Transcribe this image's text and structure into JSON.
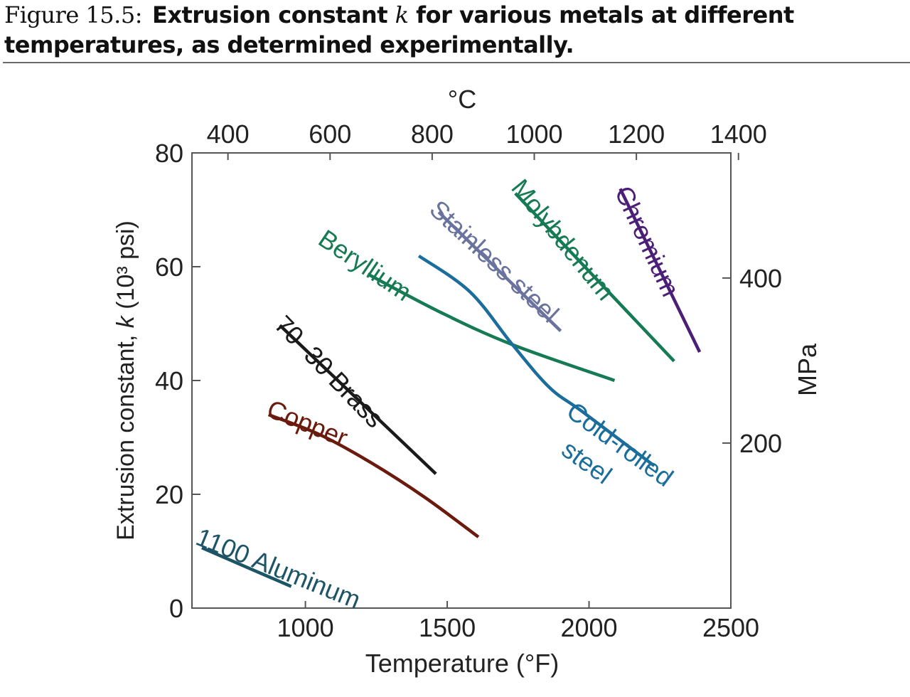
{
  "caption": {
    "number": "Figure 15.5:",
    "text_before_k": "Extrusion constant ",
    "k": "k",
    "text_after_k": " for various metals at different temperatures, as determined experimentally."
  },
  "chart_data": {
    "type": "line",
    "title": "",
    "xlabel": "Temperature (°F)",
    "ylabel_prefix": "Extrusion constant, ",
    "ylabel_k": "k",
    "ylabel_suffix": " (10³ psi)",
    "top_axis_label": "°C",
    "right_axis_label": "MPa",
    "xlim": [
      600,
      2500
    ],
    "ylim": [
      0,
      80
    ],
    "x_ticks": [
      1000,
      1500,
      2000,
      2500
    ],
    "y_ticks": [
      0,
      20,
      40,
      60,
      80
    ],
    "top_ticks_C": [
      400,
      600,
      800,
      1000,
      1200,
      1400
    ],
    "right_ticks_MPa": [
      200,
      400
    ],
    "grid": false,
    "legend": "none (inline labels)",
    "series": [
      {
        "name": "1100 Aluminum",
        "color": "#1d5466",
        "x": [
          635,
          950
        ],
        "y": [
          10.6,
          3.8
        ]
      },
      {
        "name": "Copper",
        "color": "#6b1a0e",
        "x": [
          870,
          1050,
          1230,
          1420,
          1610
        ],
        "y": [
          34,
          30.5,
          25.6,
          19.5,
          12.5
        ]
      },
      {
        "name": "70–30 Brass",
        "color": "#1a1a1a",
        "x": [
          910,
          1460
        ],
        "y": [
          49.7,
          23.6
        ]
      },
      {
        "name": "Beryllium",
        "color": "#167a54",
        "x": [
          1220,
          1480,
          1730,
          2090
        ],
        "y": [
          58.7,
          51.9,
          46.3,
          40
        ]
      },
      {
        "name": "Cold-rolled steel",
        "color": "#1b6e9b",
        "x": [
          1400,
          1580,
          1730,
          1860,
          1980,
          2230
        ],
        "y": [
          61.9,
          55.6,
          46.3,
          38.8,
          34.4,
          25
        ]
      },
      {
        "name": "Stainless steel",
        "color": "#6a739e",
        "x": [
          1470,
          1900
        ],
        "y": [
          69.6,
          48.7
        ]
      },
      {
        "name": "Molybdenum",
        "color": "#167a54",
        "x": [
          1740,
          2300
        ],
        "y": [
          72.9,
          43.4
        ]
      },
      {
        "name": "Chromium",
        "color": "#4b1f78",
        "x": [
          2110,
          2390
        ],
        "y": [
          73.7,
          45
        ]
      }
    ],
    "labels": {
      "aluminum": "1100 Aluminum",
      "copper": "Copper",
      "brass": "70–30 Brass",
      "beryllium": "Beryllium",
      "stainless": "Stainless steel",
      "molybdenum": "Molybdenum",
      "chromium": "Chromium",
      "cold_rolled_1": "Cold-rolled",
      "cold_rolled_2": "steel"
    }
  }
}
